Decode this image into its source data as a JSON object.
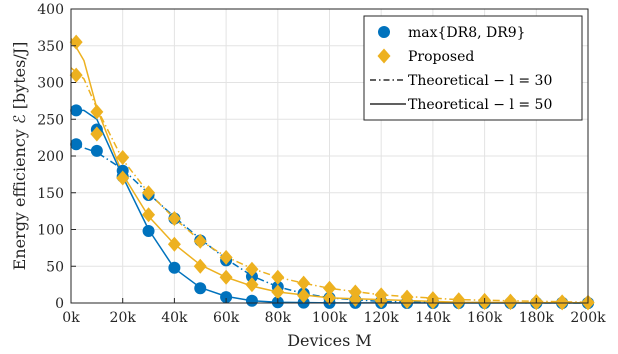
{
  "chart_data": {
    "type": "line",
    "xlabel": "Devices M",
    "ylabel": "Energy efficiency ℰ [bytes/J]",
    "xlim": [
      0,
      200000
    ],
    "ylim": [
      0,
      400
    ],
    "xticks": [
      0,
      20000,
      40000,
      60000,
      80000,
      100000,
      120000,
      140000,
      160000,
      180000,
      200000
    ],
    "xticklabels": [
      "0k",
      "20k",
      "40k",
      "60k",
      "80k",
      "100k",
      "120k",
      "140k",
      "160k",
      "180k",
      "200k"
    ],
    "yticks": [
      0,
      50,
      100,
      150,
      200,
      250,
      300,
      350,
      400
    ],
    "yticklabels": [
      "0",
      "50",
      "100",
      "150",
      "200",
      "250",
      "300",
      "350",
      "400"
    ],
    "grid": true,
    "legend_position": "top-right",
    "legend": [
      {
        "label": "max{DR8, DR9}",
        "style": "blue-circle"
      },
      {
        "label": "Proposed",
        "style": "orange-diamond"
      },
      {
        "label": "Theoretical − l = 30",
        "style": "dash-dot"
      },
      {
        "label": "Theoretical − l = 50",
        "style": "solid"
      }
    ],
    "colors": {
      "blue": "#0072BD",
      "orange": "#EDB120"
    },
    "x": [
      2000,
      10000,
      20000,
      30000,
      40000,
      50000,
      60000,
      70000,
      80000,
      90000,
      100000,
      110000,
      120000,
      130000,
      140000,
      150000,
      160000,
      170000,
      180000,
      190000,
      200000
    ],
    "series": [
      {
        "group": "max{DR8, DR9}",
        "l": 30,
        "marker": "circle",
        "color": "#0072BD",
        "values": [
          216,
          207,
          180,
          147,
          115,
          85,
          58,
          36,
          22,
          13,
          7,
          4,
          2,
          1,
          1,
          0.5,
          0.3,
          0.2,
          0.1,
          0.1,
          0.05
        ]
      },
      {
        "group": "max{DR8, DR9}",
        "l": 50,
        "marker": "circle",
        "color": "#0072BD",
        "values": [
          262,
          236,
          172,
          98,
          48,
          20,
          8,
          3,
          1,
          0.5,
          0.2,
          0.1,
          0,
          0,
          0,
          0,
          0,
          0,
          0,
          0,
          0
        ]
      },
      {
        "group": "Proposed",
        "l": 30,
        "marker": "diamond",
        "color": "#EDB120",
        "values": [
          310,
          260,
          198,
          150,
          115,
          84,
          62,
          46,
          35,
          27,
          20,
          15,
          11,
          8,
          6,
          4.5,
          3.5,
          2.5,
          2,
          1.5,
          1
        ]
      },
      {
        "group": "Proposed",
        "l": 50,
        "marker": "diamond",
        "color": "#EDB120",
        "values": [
          355,
          230,
          170,
          120,
          80,
          50,
          35,
          25,
          15,
          10,
          7,
          5,
          3,
          2,
          1.5,
          1,
          0.7,
          0.5,
          0.3,
          0.2,
          0.1
        ]
      }
    ],
    "theoretical": [
      {
        "l": 30,
        "style": "dash-dot",
        "color": "#0072BD",
        "x": [
          0,
          10000,
          20000,
          30000,
          40000,
          50000,
          60000,
          70000,
          80000,
          90000,
          100000,
          120000,
          150000,
          200000
        ],
        "values": [
          217,
          205,
          182,
          149,
          117,
          87,
          60,
          37,
          22,
          13,
          7,
          2,
          0.5,
          0
        ]
      },
      {
        "l": 50,
        "style": "solid",
        "color": "#0072BD",
        "x": [
          0,
          5000,
          10000,
          20000,
          30000,
          40000,
          50000,
          60000,
          70000,
          80000,
          100000,
          150000,
          200000
        ],
        "values": [
          262,
          262,
          250,
          172,
          100,
          47,
          21,
          9,
          3,
          1,
          0.2,
          0,
          0
        ]
      },
      {
        "l": 30,
        "style": "dash-dot",
        "color": "#EDB120",
        "x": [
          0,
          5000,
          10000,
          20000,
          30000,
          40000,
          50000,
          60000,
          70000,
          80000,
          90000,
          100000,
          120000,
          150000,
          200000
        ],
        "values": [
          320,
          305,
          265,
          195,
          150,
          115,
          85,
          63,
          47,
          35,
          27,
          20,
          11,
          4.5,
          1
        ]
      },
      {
        "l": 50,
        "style": "solid",
        "color": "#EDB120",
        "x": [
          0,
          5000,
          10000,
          20000,
          30000,
          40000,
          50000,
          60000,
          70000,
          80000,
          100000,
          150000,
          200000
        ],
        "values": [
          360,
          330,
          265,
          175,
          118,
          80,
          52,
          35,
          23,
          15,
          7,
          1,
          0.1
        ]
      }
    ]
  }
}
